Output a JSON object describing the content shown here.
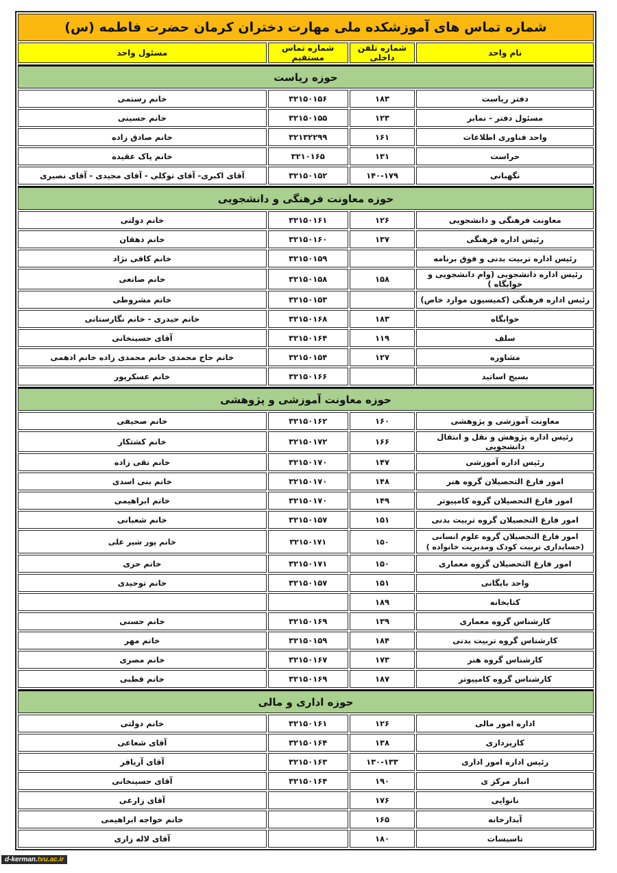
{
  "title": "شماره تماس های آموزشکده ملی مهارت دختران کرمان حضرت فاطمه (س)",
  "headers": {
    "unit": "نام واحد",
    "internal": "شماره تلفن داخلی",
    "direct": "شماره تماس مستقیم",
    "responsible": "مسئول واحد"
  },
  "sections": [
    {
      "title": "حوزه ریاست",
      "rows": [
        {
          "unit": "دفتر ریاست",
          "internal": "۱۸۳",
          "direct": "۳۲۱۵۰۱۵۶",
          "responsible": "خانم رستمی"
        },
        {
          "unit": "مسئول دفتر - نمابر",
          "internal": "۱۲۳",
          "direct": "۳۲۱۵۰۱۵۵",
          "responsible": "خانم حسینی"
        },
        {
          "unit": "واحد فناوری اطلاعات",
          "internal": "۱۶۱",
          "direct": "۳۲۱۳۲۲۹۹",
          "responsible": "خانم صادق زاده"
        },
        {
          "unit": "حراست",
          "internal": "۱۳۱",
          "direct": "۳۲۱۰۱۶۵",
          "responsible": "خانم پاک عقیده"
        },
        {
          "unit": "نگهبانی",
          "internal": "۱۴۰-۱۷۹",
          "direct": "۳۲۱۵۰۱۵۲",
          "responsible": "آقای اکبری- آقای توکلی - آقای مجیدی - آقای نصیری"
        }
      ]
    },
    {
      "title": "حوزه معاونت فرهنگی و دانشجویی",
      "rows": [
        {
          "unit": "معاونت فرهنگی و دانشجویی",
          "internal": "۱۲۶",
          "direct": "۳۲۱۵۰۱۶۱",
          "responsible": "خانم دولتی"
        },
        {
          "unit": "رئیس اداره فرهنگی",
          "internal": "۱۳۷",
          "direct": "۳۲۱۵۰۱۶۰",
          "responsible": "خانم دهقان"
        },
        {
          "unit": "رئیس اداره تربیت بدنی و فوق برنامه",
          "internal": "",
          "direct": "۳۲۱۵۰۱۵۹",
          "responsible": "خانم کافی نژاد"
        },
        {
          "unit": "رئیس اداره دانشجویی (وام دانشجویی و خوابگاه )",
          "internal": "۱۵۸",
          "direct": "۳۲۱۵۰۱۵۸",
          "responsible": "خانم صانعی"
        },
        {
          "unit": "رئیس اداره فرهنگی (کمیسیون موارد خاص)",
          "internal": "",
          "direct": "۳۲۱۵۰۱۵۳",
          "responsible": "خانم مشروطی"
        },
        {
          "unit": "خوابگاه",
          "internal": "۱۸۳",
          "direct": "۳۲۱۵۰۱۶۸",
          "responsible": "خانم حیدری - خانم نگارستانی"
        },
        {
          "unit": "سلف",
          "internal": "۱۱۹",
          "direct": "۳۲۱۵۰۱۶۴",
          "responsible": "آقای حسینخانی"
        },
        {
          "unit": "مشاوره",
          "internal": "۱۲۷",
          "direct": "۳۲۱۵۰۱۵۴",
          "responsible": "خانم حاج محمدی  خانم محمدی زاده  خانم ادهمی"
        },
        {
          "unit": "بسیج اساتید",
          "internal": "",
          "direct": "۳۲۱۵۰۱۶۶",
          "responsible": "خانم عسکرپور"
        }
      ]
    },
    {
      "title": "حوزه معاونت آموزشی و پژوهشی",
      "rows": [
        {
          "unit": "معاونت آموزشی و پژوهشی",
          "internal": "۱۶۰",
          "direct": "۳۲۱۵۰۱۶۲",
          "responsible": "خانم صحیفی"
        },
        {
          "unit": "رئیس اداره پژوهش و نقل و انتقال دانشجویی",
          "internal": "۱۶۶",
          "direct": "۳۲۱۵۰۱۷۲",
          "responsible": "خانم کشتکار"
        },
        {
          "unit": "رئیس اداره آموزشی",
          "internal": "۱۴۷",
          "direct": "۳۲۱۵۰۱۷۰",
          "responsible": "خانم تقی زاده"
        },
        {
          "unit": "امور فارغ التحصیلان گروه هنر",
          "internal": "۱۴۸",
          "direct": "۳۲۱۵۰۱۷۰",
          "responsible": "خانم بنی اسدی"
        },
        {
          "unit": "امور فارغ التحصیلان گروه  کامپیوتر",
          "internal": "۱۴۹",
          "direct": "۳۲۱۵۰۱۷۰",
          "responsible": "خانم ابراهیمی"
        },
        {
          "unit": "امور فارغ التحصیلان گروه تربیت بدنی",
          "internal": "۱۵۱",
          "direct": "۳۲۱۵۰۱۵۷",
          "responsible": "خانم شعبانی"
        },
        {
          "unit": "امور فارغ التحصیلان گروه علوم انسانی (حسابداری تربیت کودک ومدیریت خانواده )",
          "internal": "۱۵۰",
          "direct": "۳۲۱۵۰۱۷۱",
          "responsible": "خانم پور شیر علی",
          "tall": true
        },
        {
          "unit": "امور فارغ التحصیلان گروه  معماری",
          "internal": "۱۵۰",
          "direct": "۳۲۱۵۰۱۷۱",
          "responsible": "خانم حری"
        },
        {
          "unit": "واحد بایگانی",
          "internal": "۱۵۱",
          "direct": "۳۲۱۵۰۱۵۷",
          "responsible": "خانم توحیدی"
        },
        {
          "unit": "کتابخانه",
          "internal": "۱۸۹",
          "direct": "",
          "responsible": ""
        },
        {
          "unit": "کارشناس گروه معماری",
          "internal": "۱۳۹",
          "direct": "۳۲۱۵۰۱۶۹",
          "responsible": "خانم حسنی"
        },
        {
          "unit": "کارشناس گروه تربیت بدنی",
          "internal": "۱۸۴",
          "direct": "۳۲۱۵۰۱۵۹",
          "responsible": "خانم مهر"
        },
        {
          "unit": "کارشناس گروه هنر",
          "internal": "۱۷۳",
          "direct": "۳۲۱۵۰۱۶۷",
          "responsible": "خانم مصری"
        },
        {
          "unit": "کارشناس گروه  کامپیوتر",
          "internal": "۱۸۷",
          "direct": "۳۲۱۵۰۱۶۹",
          "responsible": "خانم قطبی"
        }
      ]
    },
    {
      "title": "حوزه  اداری و مالی",
      "rows": [
        {
          "unit": "اداره امور مالی",
          "internal": "۱۲۶",
          "direct": "۳۲۱۵۰۱۶۱",
          "responsible": "خانم دولتی"
        },
        {
          "unit": "کارپردازی",
          "internal": "۱۳۸",
          "direct": "۳۲۱۵۰۱۶۴",
          "responsible": "آقای شعاعی"
        },
        {
          "unit": "رئیس اداره امور اداری",
          "internal": "۱۳۰-۱۳۳",
          "direct": "۳۲۱۵۰۱۶۳",
          "responsible": "آقای آریافر"
        },
        {
          "unit": "انبار مرکز ی",
          "internal": "۱۹۰",
          "direct": "۳۲۱۵۰۱۶۴",
          "responsible": "آقای حسینخانی"
        },
        {
          "unit": "نانوایی",
          "internal": "۱۷۶",
          "direct": "",
          "responsible": "آقای زارعی"
        },
        {
          "unit": "آبدارخانه",
          "internal": "۱۶۵",
          "direct": "",
          "responsible": "خانم خواجه ابراهیمی"
        },
        {
          "unit": "تاسیسات",
          "internal": "۱۸۰",
          "direct": "",
          "responsible": "آقای لاله زاری"
        }
      ]
    }
  ],
  "watermark": {
    "prefix": "d-kerman.",
    "suffix": "tvu.ac.ir"
  },
  "colors": {
    "title_bg": "#fbb90f",
    "header_bg": "#ffff00",
    "section_bg": "#a9d08e"
  }
}
